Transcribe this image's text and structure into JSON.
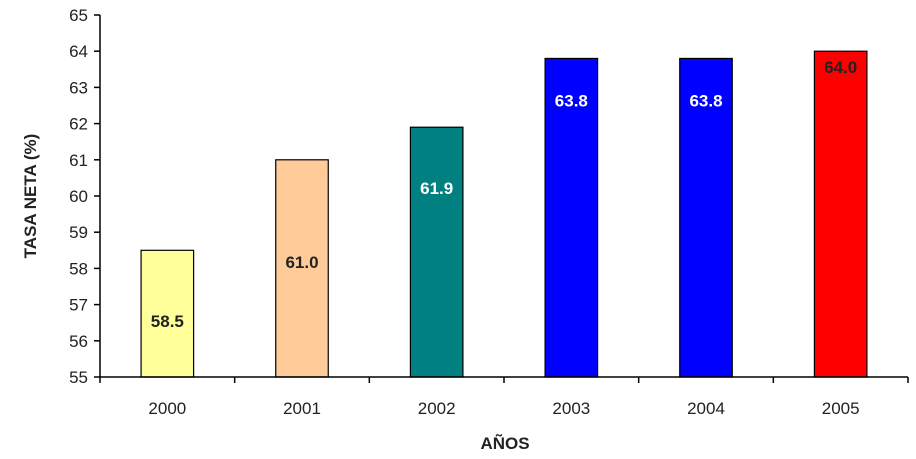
{
  "chart_data": {
    "type": "bar",
    "categories": [
      "2000",
      "2001",
      "2002",
      "2003",
      "2004",
      "2005"
    ],
    "values": [
      58.5,
      61.0,
      61.9,
      63.8,
      63.8,
      64.0
    ],
    "data_labels": [
      "58.5",
      "61.0",
      "61.9",
      "63.8",
      "63.8",
      "64.0"
    ],
    "bar_colors": [
      "#ffff99",
      "#ffcc99",
      "#008080",
      "#0000ff",
      "#0000ff",
      "#ff0000"
    ],
    "label_colors": [
      "#222222",
      "#222222",
      "#ffffff",
      "#ffffff",
      "#ffffff",
      "#222222"
    ],
    "title": "",
    "xlabel": "AÑOS",
    "ylabel": "TASA NETA (%)",
    "ylim": [
      55,
      65
    ],
    "yticks": [
      "55",
      "56",
      "57",
      "58",
      "59",
      "60",
      "61",
      "62",
      "63",
      "64",
      "65"
    ],
    "grid": false,
    "legend": "none"
  }
}
